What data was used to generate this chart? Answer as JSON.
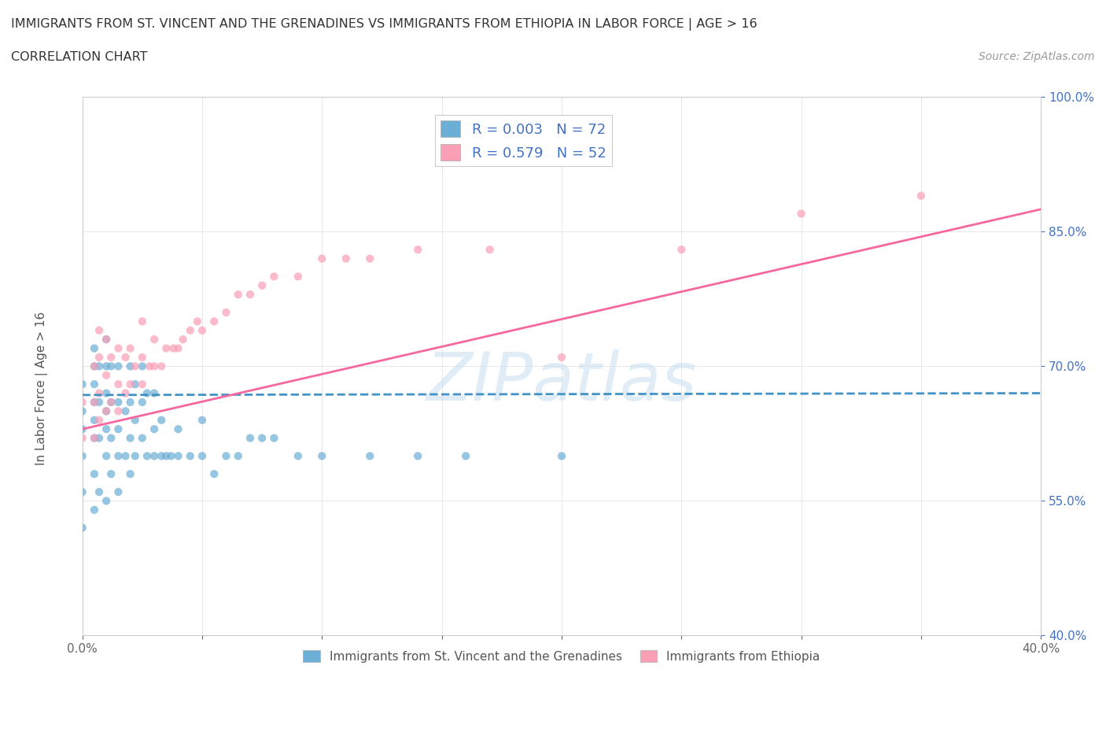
{
  "title": "IMMIGRANTS FROM ST. VINCENT AND THE GRENADINES VS IMMIGRANTS FROM ETHIOPIA IN LABOR FORCE | AGE > 16",
  "subtitle": "CORRELATION CHART",
  "source": "Source: ZipAtlas.com",
  "ylabel": "In Labor Force | Age > 16",
  "watermark": "ZIPatlas",
  "xlim": [
    0.0,
    0.4
  ],
  "ylim": [
    0.4,
    1.0
  ],
  "yticks": [
    0.4,
    0.55,
    0.7,
    0.85,
    1.0
  ],
  "ytick_labels": [
    "40.0%",
    "55.0%",
    "70.0%",
    "85.0%",
    "100.0%"
  ],
  "xticks": [
    0.0,
    0.05,
    0.1,
    0.15,
    0.2,
    0.25,
    0.3,
    0.35,
    0.4
  ],
  "xtick_labels": [
    "0.0%",
    "",
    "",
    "",
    "",
    "",
    "",
    "",
    "40.0%"
  ],
  "color_blue": "#6baed6",
  "color_pink": "#fa9fb5",
  "trendline_blue": "#4292c6",
  "trendline_pink": "#f768a1",
  "scatter_alpha": 0.7,
  "blue_points_x": [
    0.0,
    0.0,
    0.0,
    0.0,
    0.0,
    0.005,
    0.005,
    0.005,
    0.005,
    0.005,
    0.005,
    0.007,
    0.007,
    0.007,
    0.01,
    0.01,
    0.01,
    0.01,
    0.01,
    0.012,
    0.012,
    0.012,
    0.015,
    0.015,
    0.015,
    0.015,
    0.018,
    0.018,
    0.02,
    0.02,
    0.02,
    0.022,
    0.022,
    0.025,
    0.025,
    0.027,
    0.027,
    0.03,
    0.03,
    0.033,
    0.035,
    0.037,
    0.04,
    0.04,
    0.045,
    0.05,
    0.05,
    0.055,
    0.06,
    0.065,
    0.07,
    0.075,
    0.08,
    0.09,
    0.1,
    0.12,
    0.14,
    0.16,
    0.2,
    0.0,
    0.005,
    0.005,
    0.007,
    0.01,
    0.01,
    0.012,
    0.015,
    0.02,
    0.022,
    0.025,
    0.03,
    0.033
  ],
  "blue_points_y": [
    0.52,
    0.56,
    0.6,
    0.63,
    0.68,
    0.54,
    0.58,
    0.62,
    0.64,
    0.66,
    0.7,
    0.56,
    0.62,
    0.7,
    0.55,
    0.6,
    0.63,
    0.67,
    0.73,
    0.58,
    0.62,
    0.7,
    0.56,
    0.6,
    0.63,
    0.7,
    0.6,
    0.65,
    0.58,
    0.62,
    0.7,
    0.6,
    0.64,
    0.62,
    0.66,
    0.6,
    0.67,
    0.6,
    0.67,
    0.6,
    0.6,
    0.6,
    0.6,
    0.63,
    0.6,
    0.6,
    0.64,
    0.58,
    0.6,
    0.6,
    0.62,
    0.62,
    0.62,
    0.6,
    0.6,
    0.6,
    0.6,
    0.6,
    0.6,
    0.65,
    0.68,
    0.72,
    0.66,
    0.65,
    0.7,
    0.66,
    0.66,
    0.66,
    0.68,
    0.7,
    0.63,
    0.64
  ],
  "pink_points_x": [
    0.0,
    0.0,
    0.005,
    0.005,
    0.005,
    0.007,
    0.007,
    0.007,
    0.007,
    0.01,
    0.01,
    0.01,
    0.012,
    0.012,
    0.015,
    0.015,
    0.015,
    0.018,
    0.018,
    0.02,
    0.02,
    0.022,
    0.025,
    0.025,
    0.025,
    0.028,
    0.03,
    0.03,
    0.033,
    0.035,
    0.038,
    0.04,
    0.042,
    0.045,
    0.048,
    0.05,
    0.055,
    0.06,
    0.065,
    0.07,
    0.075,
    0.08,
    0.09,
    0.1,
    0.11,
    0.12,
    0.14,
    0.17,
    0.2,
    0.25,
    0.3,
    0.35
  ],
  "pink_points_y": [
    0.62,
    0.66,
    0.62,
    0.66,
    0.7,
    0.64,
    0.67,
    0.71,
    0.74,
    0.65,
    0.69,
    0.73,
    0.66,
    0.71,
    0.65,
    0.68,
    0.72,
    0.67,
    0.71,
    0.68,
    0.72,
    0.7,
    0.68,
    0.71,
    0.75,
    0.7,
    0.7,
    0.73,
    0.7,
    0.72,
    0.72,
    0.72,
    0.73,
    0.74,
    0.75,
    0.74,
    0.75,
    0.76,
    0.78,
    0.78,
    0.79,
    0.8,
    0.8,
    0.82,
    0.82,
    0.82,
    0.83,
    0.83,
    0.71,
    0.83,
    0.87,
    0.89
  ],
  "blue_trend_x": [
    0.0,
    0.4
  ],
  "blue_trend_y": [
    0.668,
    0.67
  ],
  "pink_trend_x": [
    0.0,
    0.4
  ],
  "pink_trend_y": [
    0.63,
    0.875
  ]
}
